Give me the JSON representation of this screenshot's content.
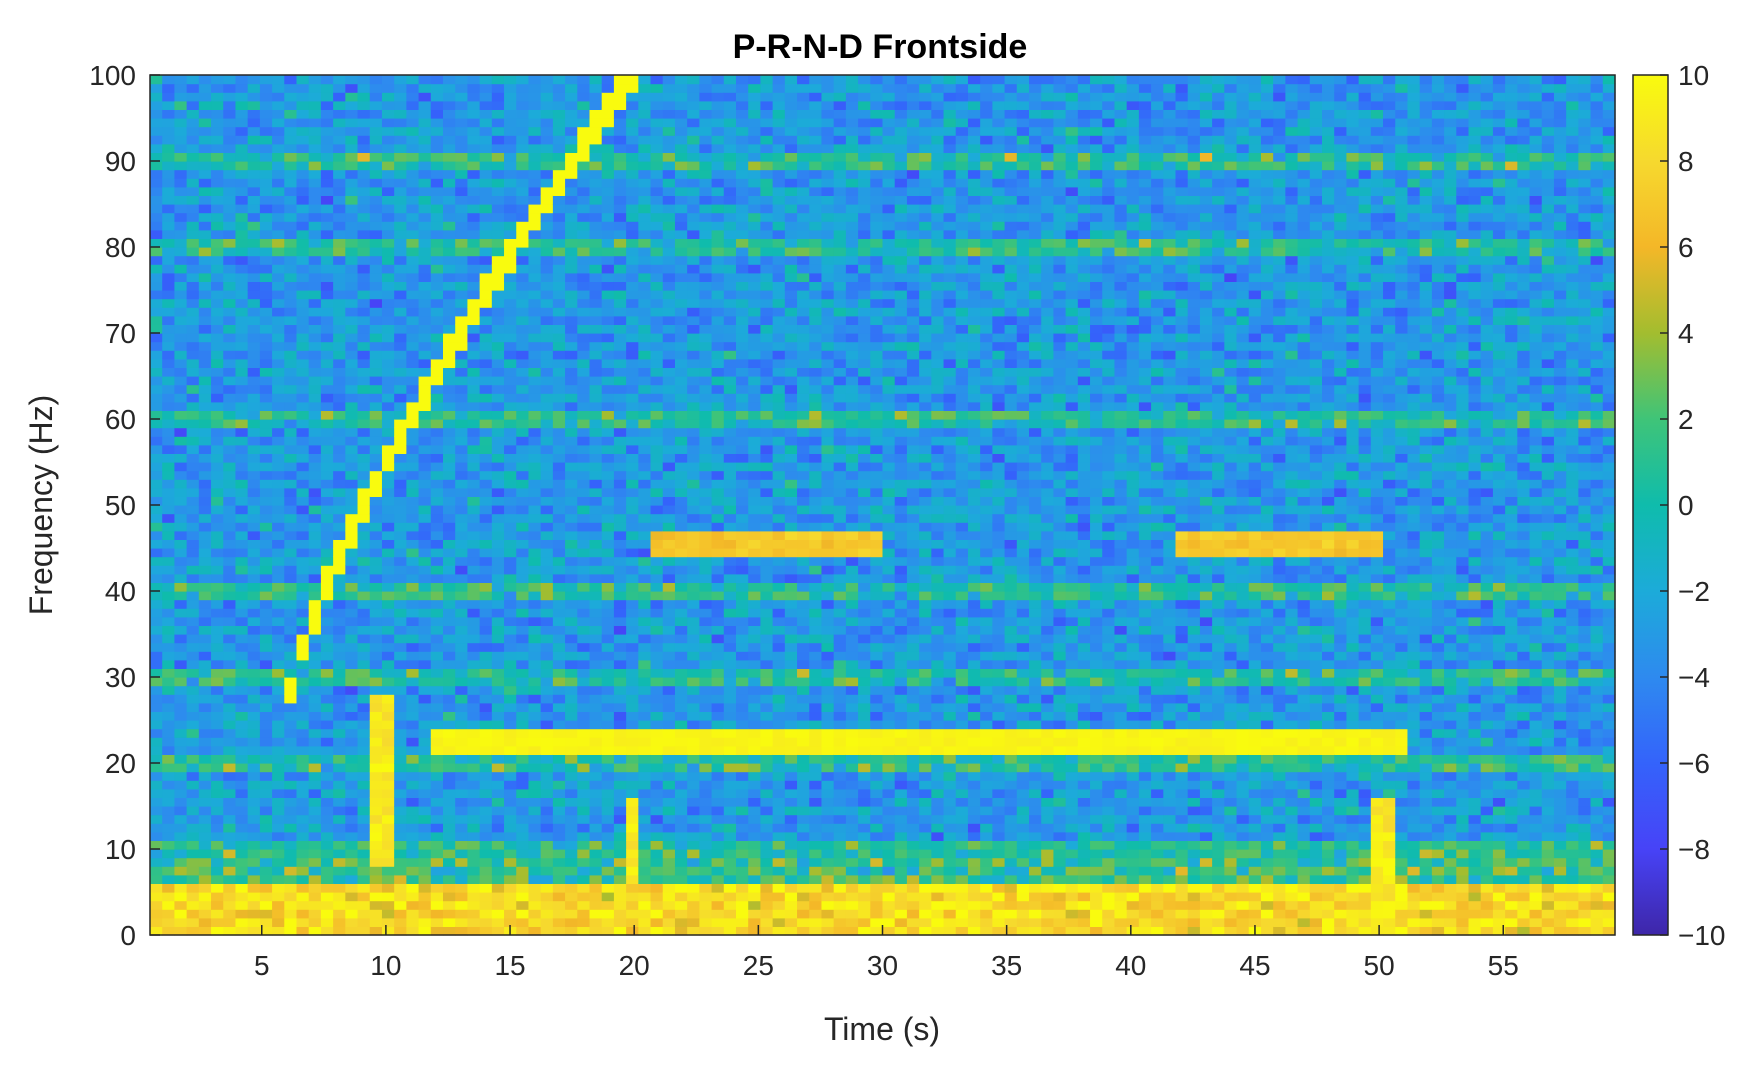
{
  "chart_data": {
    "type": "heatmap",
    "title": "P-R-N-D Frontside",
    "xlabel": "Time (s)",
    "ylabel": "Frequency (Hz)",
    "xlim": [
      0.5,
      59.5
    ],
    "ylim": [
      0,
      100
    ],
    "x_ticks": [
      5,
      10,
      15,
      20,
      25,
      30,
      35,
      40,
      45,
      50,
      55
    ],
    "x_tick_labels": [
      "5",
      "10",
      "15",
      "20",
      "25",
      "30",
      "35",
      "40",
      "45",
      "50",
      "55"
    ],
    "y_ticks": [
      0,
      10,
      20,
      30,
      40,
      50,
      60,
      70,
      80,
      90,
      100
    ],
    "y_tick_labels": [
      "0",
      "10",
      "20",
      "30",
      "40",
      "50",
      "60",
      "70",
      "80",
      "90",
      "100"
    ],
    "colorbar": {
      "limits": [
        -10,
        10
      ],
      "ticks": [
        -10,
        -8,
        -6,
        -4,
        -2,
        0,
        2,
        4,
        6,
        8,
        10
      ],
      "tick_labels": [
        "−10",
        "−8",
        "−6",
        "−4",
        "−2",
        "0",
        "2",
        "4",
        "6",
        "8",
        "10"
      ],
      "colormap": "parula",
      "colors": [
        "#3e26a8",
        "#4743f7",
        "#3463fb",
        "#2e8aef",
        "#1cabd9",
        "#0fbcac",
        "#3fc478",
        "#a3bd2f",
        "#f4b728",
        "#f6d92e",
        "#f9fb0e"
      ]
    },
    "grid": false,
    "resolution": {
      "time_bins": 120,
      "freq_bins": 100
    },
    "features": {
      "background_level": -3,
      "low_frequency_band": {
        "freq_range": [
          0,
          6
        ],
        "level": 8
      },
      "harmonic_lines_hz": [
        10,
        20,
        30,
        40,
        60,
        80,
        90
      ],
      "sweep": {
        "t_start": 6,
        "f_start": 26,
        "t_end": 20,
        "f_end": 100,
        "level": 10
      },
      "tone_22hz": {
        "t_range": [
          12,
          51
        ],
        "freq": 22.5,
        "level": 10
      },
      "tone_45hz_segments": [
        {
          "t_range": [
            20.5,
            30
          ],
          "freq": 45.5,
          "level": 7
        },
        {
          "t_range": [
            42,
            50
          ],
          "freq": 45.5,
          "level": 7
        }
      ],
      "vertical_bursts": [
        {
          "t": 9.8,
          "freq_range": [
            8,
            28
          ]
        },
        {
          "t": 20,
          "freq_range": [
            6,
            16
          ]
        },
        {
          "t": 50.2,
          "freq_range": [
            0,
            16
          ]
        }
      ]
    }
  }
}
